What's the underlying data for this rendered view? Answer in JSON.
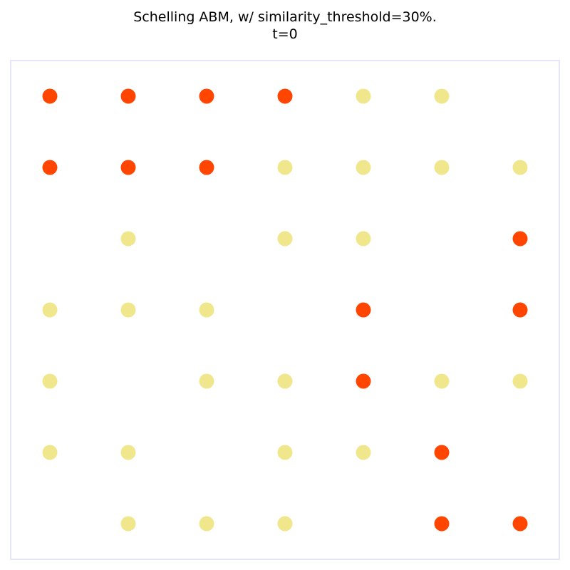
{
  "chart_data": {
    "type": "scatter",
    "title": "Schelling ABM, w/ similarity_threshold=30%.",
    "subtitle": "t=0",
    "xlabel": "",
    "ylabel": "",
    "grid": false,
    "xlim": [
      -0.5,
      6.5
    ],
    "ylim": [
      -0.5,
      6.5
    ],
    "colors": {
      "group_a": "#ff4500",
      "group_b": "#f0e68c",
      "frame": "#e6e6fa"
    },
    "series": [
      {
        "color_key": "group_a",
        "points": [
          [
            0,
            6
          ],
          [
            1,
            6
          ],
          [
            2,
            6
          ],
          [
            3,
            6
          ],
          [
            0,
            5
          ],
          [
            1,
            5
          ],
          [
            2,
            5
          ],
          [
            6,
            4
          ],
          [
            4,
            3
          ],
          [
            6,
            3
          ],
          [
            4,
            2
          ],
          [
            5,
            1
          ],
          [
            5,
            0
          ],
          [
            6,
            0
          ]
        ]
      },
      {
        "color_key": "group_b",
        "points": [
          [
            4,
            6
          ],
          [
            5,
            6
          ],
          [
            3,
            5
          ],
          [
            4,
            5
          ],
          [
            5,
            5
          ],
          [
            6,
            5
          ],
          [
            1,
            4
          ],
          [
            3,
            4
          ],
          [
            4,
            4
          ],
          [
            0,
            3
          ],
          [
            1,
            3
          ],
          [
            2,
            3
          ],
          [
            0,
            2
          ],
          [
            2,
            2
          ],
          [
            3,
            2
          ],
          [
            5,
            2
          ],
          [
            6,
            2
          ],
          [
            0,
            1
          ],
          [
            1,
            1
          ],
          [
            3,
            1
          ],
          [
            4,
            1
          ],
          [
            1,
            0
          ],
          [
            2,
            0
          ],
          [
            3,
            0
          ]
        ]
      }
    ]
  }
}
